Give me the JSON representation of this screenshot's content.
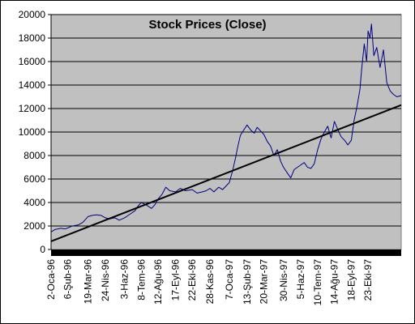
{
  "chart_data": {
    "type": "line",
    "title": "Stock Prices (Close)",
    "xlabel": "",
    "ylabel": "",
    "ylim": [
      0,
      20000
    ],
    "yticks": [
      0,
      2000,
      4000,
      6000,
      8000,
      10000,
      12000,
      14000,
      16000,
      18000,
      20000
    ],
    "xlim": [
      "1996-01-02",
      "1997-12-31"
    ],
    "x_tick_labels": [
      "2-Oca-96",
      "6-Şub-96",
      "19-Mar-96",
      "24-Nis-96",
      "3-Haz-96",
      "8-Tem-96",
      "12-Ağu-96",
      "17-Eyl-96",
      "22-Eki-96",
      "28-Kas-96",
      "7-Oca-97",
      "13-Şub-97",
      "20-Mar-97",
      "30-Nis-97",
      "5-Haz-97",
      "10-Tem-97",
      "14-Ağu-97",
      "18-Eyl-97",
      "23-Eki-97"
    ],
    "x_tick_dates": [
      "1996-01-02",
      "1996-02-06",
      "1996-03-19",
      "1996-04-24",
      "1996-06-03",
      "1996-07-08",
      "1996-08-12",
      "1996-09-17",
      "1996-10-22",
      "1996-11-28",
      "1997-01-07",
      "1997-02-13",
      "1997-03-20",
      "1997-04-30",
      "1997-06-05",
      "1997-07-10",
      "1997-08-14",
      "1997-09-18",
      "1997-10-23"
    ],
    "grid": "horizontal",
    "plot_background": "#c0c0c0",
    "series": [
      {
        "type": "line",
        "color": "#000080",
        "x": [
          "1996-01-02",
          "1996-01-10",
          "1996-01-22",
          "1996-02-01",
          "1996-02-15",
          "1996-02-28",
          "1996-03-08",
          "1996-03-19",
          "1996-03-28",
          "1996-04-05",
          "1996-04-15",
          "1996-04-24",
          "1996-05-03",
          "1996-05-14",
          "1996-05-23",
          "1996-06-03",
          "1996-06-14",
          "1996-06-25",
          "1996-07-01",
          "1996-07-08",
          "1996-07-18",
          "1996-07-29",
          "1996-08-05",
          "1996-08-12",
          "1996-08-20",
          "1996-08-28",
          "1996-09-05",
          "1996-09-17",
          "1996-09-27",
          "1996-10-08",
          "1996-10-22",
          "1996-11-01",
          "1996-11-12",
          "1996-11-20",
          "1996-11-28",
          "1996-12-06",
          "1996-12-16",
          "1996-12-24",
          "1997-01-07",
          "1997-01-14",
          "1997-01-20",
          "1997-01-24",
          "1997-01-30",
          "1997-02-05",
          "1997-02-13",
          "1997-02-20",
          "1997-02-28",
          "1997-03-06",
          "1997-03-13",
          "1997-03-20",
          "1997-03-27",
          "1997-04-03",
          "1997-04-10",
          "1997-04-17",
          "1997-04-24",
          "1997-04-30",
          "1997-05-08",
          "1997-05-15",
          "1997-05-22",
          "1997-05-29",
          "1997-06-05",
          "1997-06-12",
          "1997-06-19",
          "1997-06-26",
          "1997-07-03",
          "1997-07-10",
          "1997-07-17",
          "1997-07-24",
          "1997-07-31",
          "1997-08-07",
          "1997-08-14",
          "1997-08-21",
          "1997-08-28",
          "1997-09-04",
          "1997-09-11",
          "1997-09-18",
          "1997-09-24",
          "1997-09-30",
          "1997-10-06",
          "1997-10-10",
          "1997-10-15",
          "1997-10-20",
          "1997-10-23",
          "1997-10-27",
          "1997-10-30",
          "1997-11-04",
          "1997-11-10",
          "1997-11-17",
          "1997-11-24",
          "1997-12-01",
          "1997-12-08",
          "1997-12-15",
          "1997-12-22",
          "1997-12-31"
        ],
        "y": [
          1500,
          1700,
          1800,
          1750,
          2000,
          2100,
          2300,
          2800,
          2900,
          2950,
          2900,
          2700,
          2600,
          2700,
          2500,
          2700,
          3000,
          3300,
          3700,
          4000,
          3800,
          3500,
          3800,
          4300,
          4700,
          5300,
          5000,
          4900,
          5200,
          5000,
          5100,
          4800,
          4900,
          5000,
          5200,
          4900,
          5300,
          5100,
          5700,
          6700,
          7800,
          8600,
          9700,
          10100,
          10600,
          10200,
          9900,
          10400,
          10100,
          9800,
          9200,
          8800,
          8000,
          8500,
          7500,
          7000,
          6500,
          6100,
          6800,
          7000,
          7200,
          7400,
          7000,
          6900,
          7300,
          8500,
          9400,
          10000,
          10500,
          9500,
          10900,
          10200,
          9600,
          9300,
          8900,
          9300,
          11000,
          12200,
          13600,
          15500,
          17500,
          16000,
          18600,
          18000,
          19200,
          16500,
          17200,
          15500,
          17000,
          14200,
          13500,
          13200,
          13000,
          13100
        ]
      },
      {
        "type": "trendline",
        "color": "#000000",
        "x": [
          "1996-01-02",
          "1997-12-31"
        ],
        "y": [
          700,
          12300
        ]
      }
    ]
  }
}
